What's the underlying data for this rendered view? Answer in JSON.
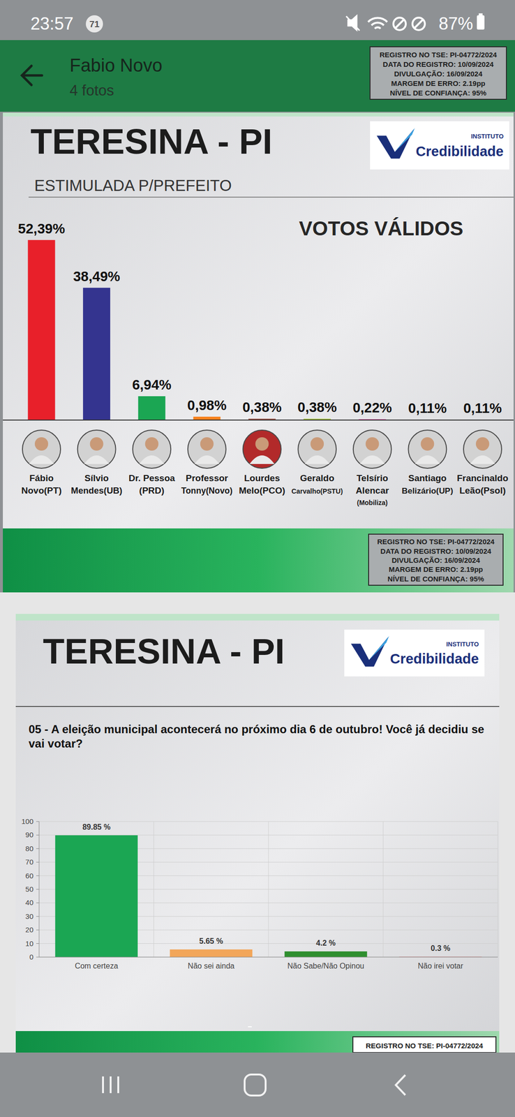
{
  "screen": {
    "status": {
      "time": "23:57",
      "badge": "71",
      "battery": "87%"
    },
    "header": {
      "title": "Fabio Novo",
      "subtitle": "4 fotos"
    },
    "registration": [
      "REGISTRO NO TSE: PI-04772/2024",
      "DATA DO REGISTRO: 10/09/2024",
      "DIVULGAÇÃO: 16/09/2024",
      "MARGEM DE ERRO: 2.19pp",
      "NÍVEL DE CONFIANÇA: 95%"
    ],
    "logo": {
      "small": "INSTITUTO",
      "big": "Credibilidade"
    }
  },
  "chart_data": [
    {
      "type": "bar",
      "title": "TERESINA - PI",
      "subtitle": "ESTIMULADA P/PREFEITO",
      "annotations": [
        "VOTOS VÁLIDOS"
      ],
      "categories": [
        "Fábio\nNovo(PT)",
        "Sílvio\nMendes(UB)",
        "Dr. Pessoa\n(PRD)",
        "Professor\nTonny(Novo)",
        "Lourdes\nMelo(PCO)",
        "Geraldo\nCarvalho(PSTU)",
        "Telsírio\nAlencar\n(Mobiliza)",
        "Santiago\nBelizário(UP)",
        "Francinaldo\nLeão(Psol)"
      ],
      "values": [
        52.39,
        38.49,
        6.94,
        0.98,
        0.38,
        0.38,
        0.22,
        0.11,
        0.11
      ],
      "value_labels": [
        "52,39%",
        "38,49%",
        "6,94%",
        "0,98%",
        "0,38%",
        "0,38%",
        "0,22%",
        "0,11%",
        "0,11%"
      ],
      "colors": [
        "#e8202a",
        "#34348f",
        "#1ba653",
        "#f7821e",
        "#9c4a3a",
        "#a6c93a",
        "#e0138c",
        "#3aa6b0",
        "#2a8fd0"
      ],
      "ylim": [
        0,
        55
      ],
      "tick_labels": false,
      "data_labels": true,
      "grid": false
    },
    {
      "type": "bar",
      "title": "TERESINA - PI",
      "subtitle": "05 - A eleição municipal acontecerá no próximo dia 6 de outubro! Você já decidiu se vai votar?",
      "categories": [
        "Com certeza",
        "Não sei ainda",
        "Não Sabe/Não Opinou",
        "Não irei votar"
      ],
      "values": [
        89.85,
        5.65,
        4.2,
        0.3
      ],
      "value_labels": [
        "89.85 %",
        "5.65 %",
        "4.2 %",
        "0.3 %"
      ],
      "colors": [
        "#1ba653",
        "#f2a65a",
        "#2f8f2f",
        "#e07a7a"
      ],
      "ylim": [
        0,
        100
      ],
      "yticks": [
        0,
        10,
        20,
        30,
        40,
        50,
        60,
        70,
        80,
        90,
        100
      ],
      "grid": true,
      "data_labels": true
    }
  ]
}
